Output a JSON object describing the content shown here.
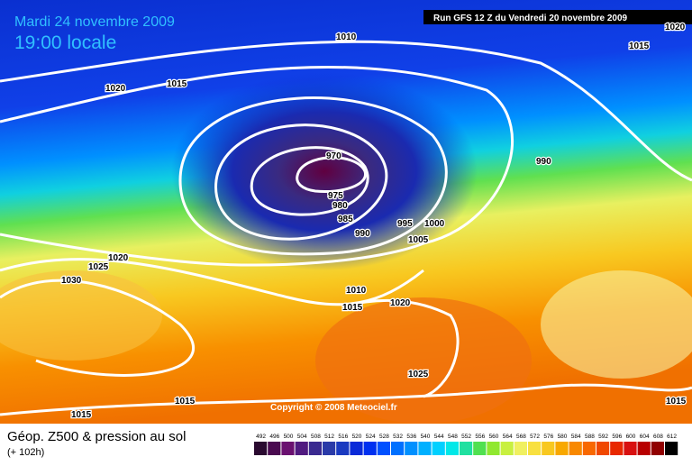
{
  "header": {
    "date": "Mardi 24 novembre 2009",
    "time": "19:00 locale",
    "run": "Run GFS 12 Z du Vendredi 20 novembre 2009"
  },
  "isobars": [
    1010,
    1015,
    1020,
    1020,
    1015,
    970,
    975,
    980,
    985,
    990,
    995,
    1000,
    1005,
    990,
    1020,
    1025,
    1030,
    1010,
    1015,
    1020,
    1025,
    1015,
    1015,
    1015
  ],
  "copyright": "Copyright © 2008 Meteociel.fr",
  "legend": {
    "title": "Géop. Z500 & pression au sol",
    "subtitle": "(+ 102h)",
    "levels": [
      492,
      496,
      500,
      504,
      508,
      512,
      516,
      520,
      524,
      528,
      532,
      536,
      540,
      544,
      548,
      552,
      556,
      560,
      564,
      568,
      572,
      576,
      580,
      584,
      588,
      592,
      596,
      600,
      604,
      608,
      612
    ],
    "colors": [
      "#2a0a30",
      "#4a0a50",
      "#6a1070",
      "#501a80",
      "#3a2a90",
      "#2a3aa8",
      "#1a3ac0",
      "#0a2ad8",
      "#0030f0",
      "#0050ff",
      "#0070ff",
      "#0090ff",
      "#00b0ff",
      "#00d0ff",
      "#00e8e8",
      "#20e0a0",
      "#50e050",
      "#90e830",
      "#c8f040",
      "#f0f060",
      "#f8e040",
      "#f8c820",
      "#f8a800",
      "#f88800",
      "#f86800",
      "#f04800",
      "#e82800",
      "#d81010",
      "#b80000",
      "#900000",
      "#000000"
    ]
  }
}
